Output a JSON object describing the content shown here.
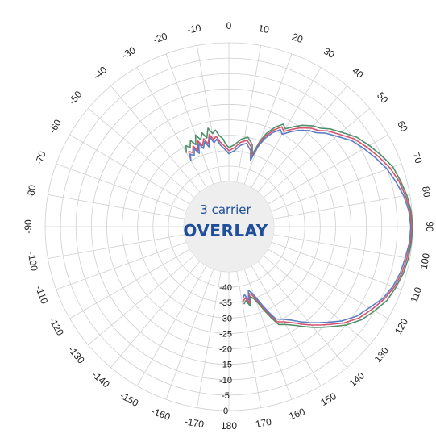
{
  "chart_data": {
    "type": "polar-line",
    "title": "3 carrier",
    "subtitle": "OVERLAY",
    "angle_ticks": [
      0,
      10,
      20,
      30,
      40,
      50,
      60,
      70,
      80,
      90,
      100,
      110,
      120,
      130,
      140,
      150,
      160,
      170,
      180,
      -170,
      -160,
      -150,
      -140,
      -130,
      -120,
      -110,
      -100,
      -90,
      -80,
      -70,
      -60,
      -50,
      -40,
      -30,
      -20,
      -10
    ],
    "radial_ticks": [
      -40,
      -35,
      -30,
      -25,
      -20,
      -15,
      -10,
      -5,
      0
    ],
    "rlim": [
      -45,
      0
    ],
    "grid": true,
    "series": [
      {
        "color": "#4f8f6a",
        "points": [
          [
            -30,
            -32
          ],
          [
            -28,
            -30
          ],
          [
            -26,
            -31
          ],
          [
            -24,
            -29
          ],
          [
            -22,
            -31
          ],
          [
            -20,
            -28
          ],
          [
            -18,
            -30
          ],
          [
            -16,
            -28
          ],
          [
            -14,
            -30
          ],
          [
            -12,
            -27
          ],
          [
            -10,
            -29
          ],
          [
            -8,
            -28
          ],
          [
            -6,
            -30
          ],
          [
            -4,
            -31
          ],
          [
            -2,
            -33
          ],
          [
            0,
            -34
          ],
          [
            4,
            -33
          ],
          [
            8,
            -31
          ],
          [
            12,
            -30
          ],
          [
            16,
            -32
          ],
          [
            18,
            -35
          ],
          [
            20,
            -30
          ],
          [
            22,
            -27
          ],
          [
            25,
            -24
          ],
          [
            28,
            -22
          ],
          [
            30,
            -23
          ],
          [
            33,
            -21
          ],
          [
            36,
            -19
          ],
          [
            40,
            -17
          ],
          [
            43,
            -16
          ],
          [
            46,
            -14
          ],
          [
            50,
            -12
          ],
          [
            55,
            -9
          ],
          [
            60,
            -7
          ],
          [
            65,
            -5
          ],
          [
            70,
            -3
          ],
          [
            75,
            -2
          ],
          [
            80,
            -1
          ],
          [
            85,
            -0.3
          ],
          [
            90,
            0
          ],
          [
            95,
            -0.2
          ],
          [
            100,
            -0.5
          ],
          [
            105,
            -1
          ],
          [
            110,
            -2
          ],
          [
            115,
            -3
          ],
          [
            120,
            -5
          ],
          [
            125,
            -7
          ],
          [
            130,
            -10
          ],
          [
            134,
            -13
          ],
          [
            137,
            -15
          ],
          [
            140,
            -17
          ],
          [
            143,
            -19
          ],
          [
            146,
            -21
          ],
          [
            150,
            -23
          ],
          [
            153,
            -24
          ],
          [
            155,
            -27
          ],
          [
            157,
            -30
          ],
          [
            159,
            -33
          ],
          [
            161,
            -35
          ],
          [
            163,
            -36
          ],
          [
            165,
            -33
          ],
          [
            167,
            -35
          ],
          [
            169,
            -34
          ]
        ]
      },
      {
        "color": "#d9546e",
        "points": [
          [
            -30,
            -34
          ],
          [
            -28,
            -32
          ],
          [
            -26,
            -33
          ],
          [
            -24,
            -31
          ],
          [
            -22,
            -33
          ],
          [
            -20,
            -30
          ],
          [
            -18,
            -32
          ],
          [
            -16,
            -30
          ],
          [
            -14,
            -32
          ],
          [
            -12,
            -29
          ],
          [
            -10,
            -31
          ],
          [
            -8,
            -30
          ],
          [
            -6,
            -32
          ],
          [
            -4,
            -33
          ],
          [
            -2,
            -34
          ],
          [
            0,
            -35
          ],
          [
            4,
            -34
          ],
          [
            8,
            -32
          ],
          [
            12,
            -31
          ],
          [
            16,
            -33
          ],
          [
            18,
            -36
          ],
          [
            20,
            -31
          ],
          [
            22,
            -28
          ],
          [
            25,
            -25
          ],
          [
            28,
            -23
          ],
          [
            30,
            -24
          ],
          [
            33,
            -22
          ],
          [
            36,
            -20
          ],
          [
            40,
            -18
          ],
          [
            43,
            -17
          ],
          [
            46,
            -15
          ],
          [
            50,
            -13
          ],
          [
            55,
            -10
          ],
          [
            60,
            -8
          ],
          [
            65,
            -6
          ],
          [
            70,
            -4
          ],
          [
            75,
            -2.5
          ],
          [
            80,
            -1.5
          ],
          [
            85,
            -0.6
          ],
          [
            90,
            -0.3
          ],
          [
            95,
            -0.5
          ],
          [
            100,
            -1
          ],
          [
            105,
            -1.5
          ],
          [
            110,
            -2.5
          ],
          [
            115,
            -4
          ],
          [
            120,
            -6
          ],
          [
            125,
            -8
          ],
          [
            130,
            -11
          ],
          [
            134,
            -14
          ],
          [
            137,
            -16
          ],
          [
            140,
            -18
          ],
          [
            143,
            -20
          ],
          [
            146,
            -22
          ],
          [
            150,
            -24
          ],
          [
            153,
            -25
          ],
          [
            155,
            -28
          ],
          [
            157,
            -31
          ],
          [
            159,
            -34
          ],
          [
            161,
            -36
          ],
          [
            163,
            -37
          ],
          [
            165,
            -34
          ],
          [
            167,
            -36
          ],
          [
            169,
            -35
          ]
        ]
      },
      {
        "color": "#5a7fc8",
        "points": [
          [
            -30,
            -35
          ],
          [
            -28,
            -33
          ],
          [
            -26,
            -34
          ],
          [
            -24,
            -32
          ],
          [
            -22,
            -34
          ],
          [
            -20,
            -31
          ],
          [
            -18,
            -33
          ],
          [
            -16,
            -31
          ],
          [
            -14,
            -33
          ],
          [
            -12,
            -30
          ],
          [
            -10,
            -32
          ],
          [
            -8,
            -31
          ],
          [
            -6,
            -33
          ],
          [
            -4,
            -34
          ],
          [
            -2,
            -35
          ],
          [
            0,
            -36
          ],
          [
            4,
            -35
          ],
          [
            8,
            -33
          ],
          [
            12,
            -32
          ],
          [
            16,
            -34
          ],
          [
            18,
            -37
          ],
          [
            20,
            -32
          ],
          [
            22,
            -29
          ],
          [
            25,
            -26
          ],
          [
            28,
            -24
          ],
          [
            30,
            -25
          ],
          [
            33,
            -23
          ],
          [
            36,
            -21
          ],
          [
            40,
            -19
          ],
          [
            43,
            -18
          ],
          [
            46,
            -16
          ],
          [
            50,
            -14
          ],
          [
            55,
            -11
          ],
          [
            60,
            -9
          ],
          [
            65,
            -7
          ],
          [
            70,
            -5
          ],
          [
            75,
            -3.5
          ],
          [
            80,
            -2
          ],
          [
            85,
            -1
          ],
          [
            90,
            -0.6
          ],
          [
            95,
            -0.8
          ],
          [
            100,
            -1.5
          ],
          [
            105,
            -2
          ],
          [
            110,
            -3
          ],
          [
            115,
            -4.5
          ],
          [
            120,
            -7
          ],
          [
            125,
            -9
          ],
          [
            130,
            -12
          ],
          [
            134,
            -15
          ],
          [
            137,
            -17
          ],
          [
            140,
            -19
          ],
          [
            143,
            -21
          ],
          [
            146,
            -23
          ],
          [
            150,
            -25
          ],
          [
            153,
            -26
          ],
          [
            155,
            -29
          ],
          [
            157,
            -32
          ],
          [
            159,
            -35
          ],
          [
            161,
            -37
          ],
          [
            163,
            -38
          ],
          [
            165,
            -35
          ],
          [
            167,
            -37
          ],
          [
            169,
            -36
          ]
        ]
      }
    ]
  }
}
